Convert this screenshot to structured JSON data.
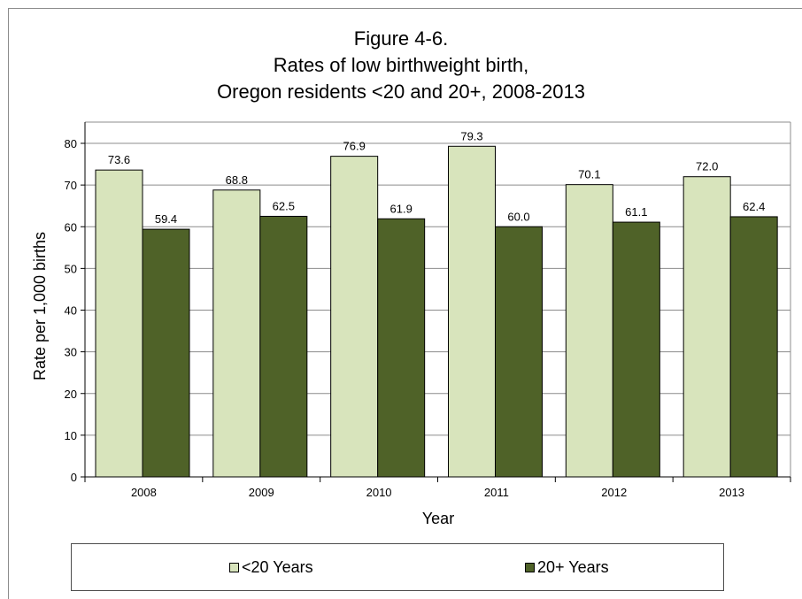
{
  "chart_data": {
    "type": "bar",
    "title_lines": [
      "Figure 4-6.",
      "Rates of low birthweight birth,",
      "Oregon residents <20 and 20+, 2008-2013"
    ],
    "xlabel": "Year",
    "ylabel": "Rate per 1,000 births",
    "categories": [
      "2008",
      "2009",
      "2010",
      "2011",
      "2012",
      "2013"
    ],
    "series": [
      {
        "name": "<20 Years",
        "values": [
          73.6,
          68.8,
          76.9,
          79.3,
          70.1,
          72.0
        ],
        "labels": [
          "73.6",
          "68.8",
          "76.9",
          "79.3",
          "70.1",
          "72.0"
        ],
        "color": "#d8e4bc"
      },
      {
        "name": "20+ Years",
        "values": [
          59.4,
          62.5,
          61.9,
          60.0,
          61.1,
          62.4
        ],
        "labels": [
          "59.4",
          "62.5",
          "61.9",
          "60.0",
          "61.1",
          "62.4"
        ],
        "color": "#4f6228"
      }
    ],
    "ylim": [
      0,
      80
    ],
    "yticks": [
      0,
      10,
      20,
      30,
      40,
      50,
      60,
      70,
      80
    ],
    "grid": true,
    "legend_position": "bottom"
  }
}
